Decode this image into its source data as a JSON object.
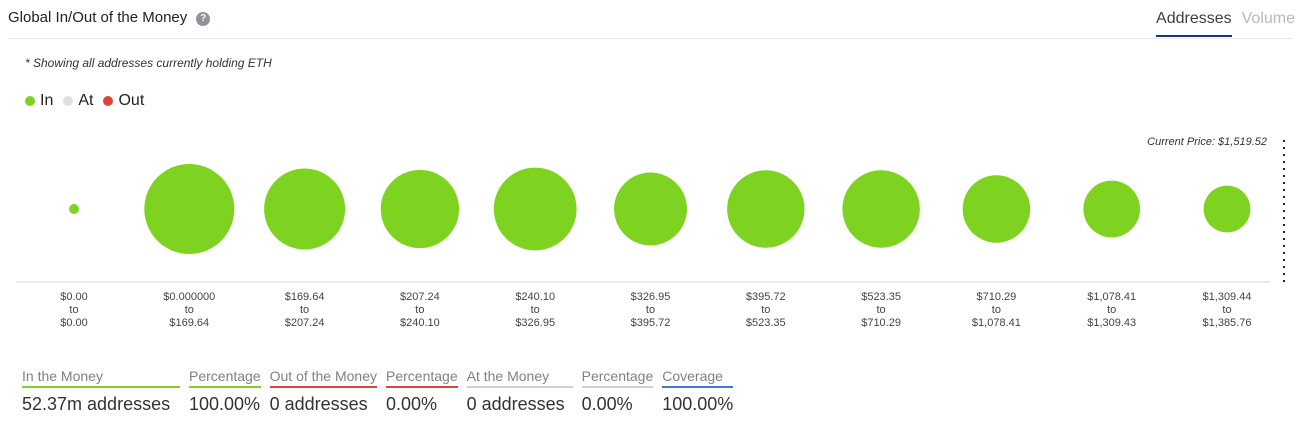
{
  "header": {
    "title": "Global In/Out of the Money",
    "tabs": [
      {
        "label": "Addresses",
        "active": true
      },
      {
        "label": "Volume",
        "active": false
      }
    ]
  },
  "note": "* Showing all addresses currently holding ETH",
  "legend": [
    {
      "label": "In",
      "color": "#7ed321"
    },
    {
      "label": "At",
      "color": "#dfe0e2"
    },
    {
      "label": "Out",
      "color": "#d9473b"
    }
  ],
  "current_price_label": "Current Price: $1,519.52",
  "chart_data": {
    "type": "bubble",
    "series": "In",
    "color": "#7ed321",
    "categories": [
      {
        "from": "$0.00",
        "to": "$0.00",
        "relative_size": 0.11
      },
      {
        "from": "$0.000000",
        "to": "$169.64",
        "relative_size": 1.0
      },
      {
        "from": "$169.64",
        "to": "$207.24",
        "relative_size": 0.9
      },
      {
        "from": "$207.24",
        "to": "$240.10",
        "relative_size": 0.87
      },
      {
        "from": "$240.10",
        "to": "$326.95",
        "relative_size": 0.92
      },
      {
        "from": "$326.95",
        "to": "$395.72",
        "relative_size": 0.81
      },
      {
        "from": "$395.72",
        "to": "$523.35",
        "relative_size": 0.86
      },
      {
        "from": "$523.35",
        "to": "$710.29",
        "relative_size": 0.86
      },
      {
        "from": "$710.29",
        "to": "$1,078.41",
        "relative_size": 0.75
      },
      {
        "from": "$1,078.41",
        "to": "$1,309.43",
        "relative_size": 0.63
      },
      {
        "from": "$1,309.44",
        "to": "$1,385.76",
        "relative_size": 0.52
      }
    ],
    "connector": "to"
  },
  "stats": [
    {
      "label": "In the Money",
      "value": "52.37m addresses",
      "color": "#7ed321"
    },
    {
      "label": "Percentage",
      "value": "100.00%",
      "color": "#7ed321"
    },
    {
      "label": "Out of the Money",
      "value": "0 addresses",
      "color": "#d9473b"
    },
    {
      "label": "Percentage",
      "value": "0.00%",
      "color": "#d9473b"
    },
    {
      "label": "At the Money",
      "value": "0 addresses",
      "color": "#cfd1d4"
    },
    {
      "label": "Percentage",
      "value": "0.00%",
      "color": "#cfd1d4"
    },
    {
      "label": "Coverage",
      "value": "100.00%",
      "color": "#3a7bd5"
    }
  ]
}
